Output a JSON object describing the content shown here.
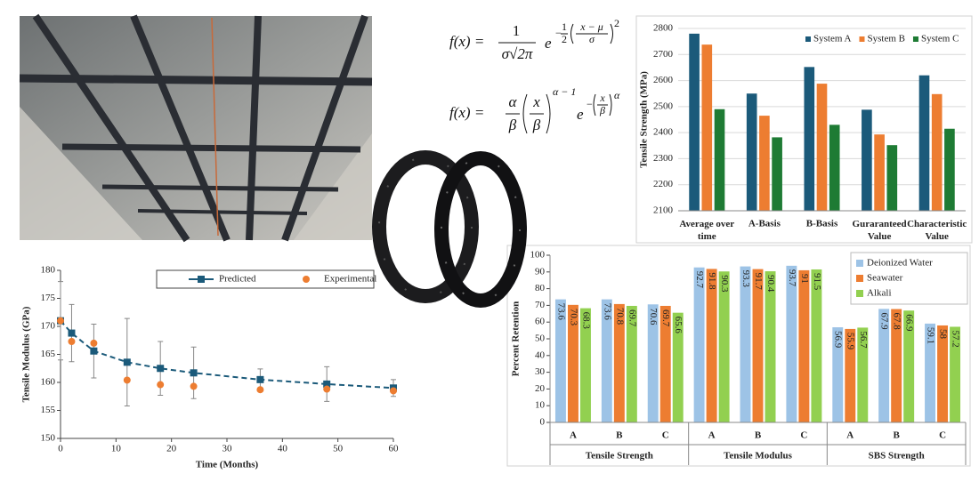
{
  "equations": [
    {
      "lhs": "f(x) =",
      "numerator": "1",
      "denominator": "σ√2π",
      "base": "e",
      "sign": "−",
      "half_num": "1",
      "half_den": "2",
      "inner_num": "x − μ",
      "inner_den": "σ",
      "power": "2"
    },
    {
      "lhs": "f(x) =",
      "numerator": "α",
      "denominator": "β",
      "frac_num": "x",
      "frac_den": "β",
      "frac_power": "α − 1",
      "base": "e",
      "sign": "−",
      "inner_num": "x",
      "inner_den": "β",
      "power": "α"
    }
  ],
  "chart_data": [
    {
      "type": "bar",
      "y_label": "Tensile Strength (MPa)",
      "categories": [
        "Average over time",
        "A-Basis",
        "B-Basis",
        "Guraranteed Value",
        "Characteristic Value"
      ],
      "series": [
        {
          "name": "System A",
          "color": "#1b5a7a",
          "values": [
            2780,
            2550,
            2652,
            2488,
            2620
          ]
        },
        {
          "name": "System B",
          "color": "#ed7d31",
          "values": [
            2738,
            2465,
            2588,
            2393,
            2548
          ]
        },
        {
          "name": "System C",
          "color": "#1e7b34",
          "values": [
            2490,
            2382,
            2430,
            2352,
            2415
          ]
        }
      ],
      "ylim": [
        2100,
        2800
      ],
      "yticks": [
        2100,
        2200,
        2300,
        2400,
        2500,
        2600,
        2700,
        2800
      ],
      "grid": true,
      "legend": "top"
    },
    {
      "type": "line",
      "x_label": "Time (Months)",
      "y_label": "Tensile Modulus (GPa)",
      "x": [
        0,
        2,
        6,
        12,
        18,
        24,
        36,
        48,
        60
      ],
      "series": [
        {
          "name": "Predicted",
          "color": "#1b5a7a",
          "marker": "square",
          "line": "dashed",
          "values": [
            171,
            168.8,
            165.6,
            163.6,
            162.5,
            161.7,
            160.5,
            159.7,
            159
          ],
          "errors": [
            7,
            5.1,
            4.8,
            7.8,
            4.8,
            4.6,
            1.9,
            3.1,
            1.5
          ]
        },
        {
          "name": "Experimental",
          "color": "#ed7d31",
          "marker": "circle",
          "values": [
            171,
            167.3,
            167,
            160.4,
            159.6,
            159.3,
            158.7,
            158.8,
            158.5
          ]
        }
      ],
      "xlim": [
        0,
        60
      ],
      "xticks": [
        0,
        10,
        20,
        30,
        40,
        50,
        60
      ],
      "ylim": [
        150,
        180
      ],
      "yticks": [
        150,
        155,
        160,
        165,
        170,
        175,
        180
      ],
      "grid": false,
      "legend": "top"
    },
    {
      "type": "bar",
      "y_label": "Percent Retention",
      "groups": [
        {
          "name": "Tensile Strength",
          "categories": [
            "A",
            "B",
            "C"
          ]
        },
        {
          "name": "Tensile Modulus",
          "categories": [
            "A",
            "B",
            "C"
          ]
        },
        {
          "name": "SBS Strength",
          "categories": [
            "A",
            "B",
            "C"
          ]
        }
      ],
      "series": [
        {
          "name": "Deionized Water",
          "color": "#9dc3e6",
          "values": [
            73.6,
            73.6,
            70.6,
            92.7,
            93.3,
            93.7,
            56.9,
            67.9,
            59.1
          ]
        },
        {
          "name": "Seawater",
          "color": "#ed7d31",
          "values": [
            70.3,
            70.8,
            69.7,
            91.8,
            91.7,
            91,
            55.9,
            67.8,
            58
          ]
        },
        {
          "name": "Alkali",
          "color": "#92d050",
          "values": [
            68.3,
            69.7,
            65.6,
            90.3,
            90.4,
            91.5,
            56.7,
            66.9,
            57.2
          ]
        }
      ],
      "ylim": [
        0,
        100
      ],
      "yticks": [
        0,
        10,
        20,
        30,
        40,
        50,
        60,
        70,
        80,
        90,
        100
      ],
      "grid": false,
      "legend": "top right",
      "data_labels": true
    }
  ]
}
